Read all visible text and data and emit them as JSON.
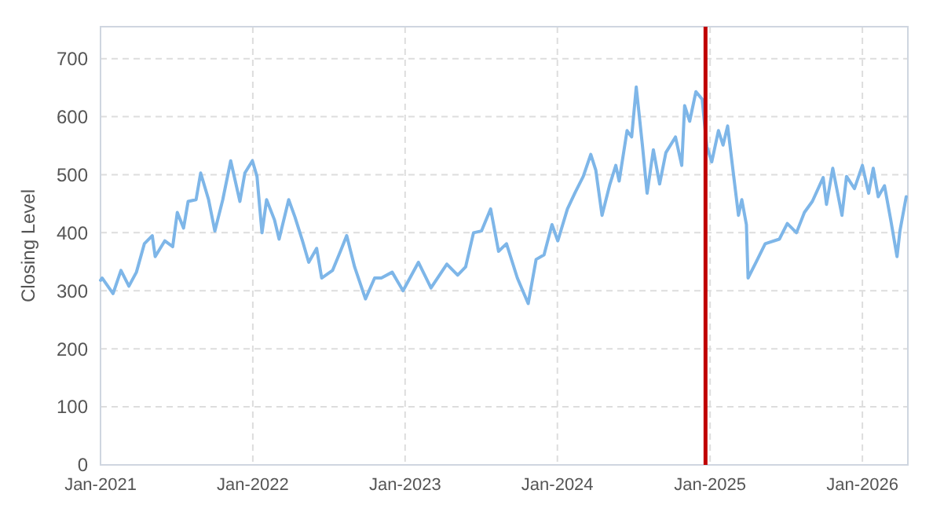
{
  "chart_data": {
    "type": "line",
    "ylabel": "Closing Level",
    "x": [
      "2021-01-01",
      "2021-01-05",
      "2021-01-31",
      "2021-02-19",
      "2021-03-10",
      "2021-03-28",
      "2021-04-16",
      "2021-05-05",
      "2021-05-12",
      "2021-06-04",
      "2021-06-23",
      "2021-07-04",
      "2021-07-19",
      "2021-07-30",
      "2021-08-18",
      "2021-08-29",
      "2021-09-17",
      "2021-10-02",
      "2021-10-21",
      "2021-11-09",
      "2021-12-01",
      "2021-12-13",
      "2021-12-31",
      "2022-01-11",
      "2022-01-23",
      "2022-02-03",
      "2022-02-22",
      "2022-03-05",
      "2022-03-28",
      "2022-04-12",
      "2022-04-30",
      "2022-05-15",
      "2022-06-03",
      "2022-06-15",
      "2022-07-11",
      "2022-07-30",
      "2022-08-14",
      "2022-09-02",
      "2022-09-28",
      "2022-10-20",
      "2022-11-05",
      "2022-12-01",
      "2022-12-27",
      "2023-02-02",
      "2023-03-04",
      "2023-04-11",
      "2023-05-07",
      "2023-05-26",
      "2023-06-14",
      "2023-07-03",
      "2023-07-25",
      "2023-08-13",
      "2023-09-01",
      "2023-09-27",
      "2023-10-23",
      "2023-11-11",
      "2023-11-30",
      "2023-12-19",
      "2024-01-02",
      "2024-01-25",
      "2024-02-13",
      "2024-03-03",
      "2024-03-21",
      "2024-04-02",
      "2024-04-17",
      "2024-05-06",
      "2024-05-20",
      "2024-05-28",
      "2024-06-16",
      "2024-06-27",
      "2024-07-08",
      "2024-07-23",
      "2024-08-03",
      "2024-08-18",
      "2024-09-02",
      "2024-09-17",
      "2024-10-10",
      "2024-10-25",
      "2024-11-01",
      "2024-11-13",
      "2024-11-28",
      "2024-12-13",
      "2024-12-24",
      "2025-01-05",
      "2025-01-21",
      "2025-02-01",
      "2025-02-12",
      "2025-02-27",
      "2025-03-10",
      "2025-03-18",
      "2025-03-29",
      "2025-04-02",
      "2025-04-21",
      "2025-05-13",
      "2025-06-16",
      "2025-07-05",
      "2025-07-27",
      "2025-08-15",
      "2025-09-03",
      "2025-09-29",
      "2025-10-07",
      "2025-10-22",
      "2025-11-13",
      "2025-11-24",
      "2025-12-13",
      "2026-01-01",
      "2026-01-16",
      "2026-01-27",
      "2026-02-08",
      "2026-02-23",
      "2026-03-10",
      "2026-03-25",
      "2026-04-01",
      "2026-04-16"
    ],
    "series": [
      {
        "color": "#7eb6e8",
        "values": [
          318,
          322,
          295,
          335,
          308,
          332,
          381,
          395,
          359,
          386,
          376,
          435,
          408,
          454,
          457,
          503,
          457,
          403,
          457,
          524,
          454,
          503,
          524,
          497,
          400,
          457,
          422,
          389,
          457,
          427,
          386,
          349,
          373,
          322,
          335,
          368,
          395,
          341,
          286,
          322,
          322,
          332,
          300,
          349,
          305,
          346,
          327,
          341,
          400,
          403,
          441,
          368,
          381,
          322,
          278,
          354,
          362,
          414,
          386,
          441,
          470,
          497,
          535,
          508,
          430,
          484,
          516,
          489,
          576,
          565,
          651,
          549,
          468,
          543,
          484,
          538,
          565,
          516,
          619,
          592,
          643,
          630,
          549,
          522,
          576,
          551,
          584,
          495,
          430,
          457,
          414,
          322,
          349,
          381,
          389,
          416,
          400,
          435,
          454,
          495,
          449,
          511,
          430,
          497,
          476,
          516,
          468,
          511,
          462,
          481,
          422,
          359,
          403,
          462
        ]
      }
    ],
    "xlim": [
      "2021-01-01",
      "2026-04-20"
    ],
    "ylim": [
      0,
      755
    ],
    "xticks": [
      {
        "value": "2021-01-01",
        "label": "Jan-2021"
      },
      {
        "value": "2022-01-01",
        "label": "Jan-2022"
      },
      {
        "value": "2023-01-01",
        "label": "Jan-2023"
      },
      {
        "value": "2024-01-01",
        "label": "Jan-2024"
      },
      {
        "value": "2025-01-01",
        "label": "Jan-2025"
      },
      {
        "value": "2026-01-01",
        "label": "Jan-2026"
      }
    ],
    "yticks": [
      0,
      100,
      200,
      300,
      400,
      500,
      600,
      700
    ],
    "grid": true,
    "line_style": "solid",
    "ref_lines": [
      {
        "axis": "x",
        "value": "2024-12-21",
        "label": null,
        "color": "#c00000"
      }
    ]
  }
}
